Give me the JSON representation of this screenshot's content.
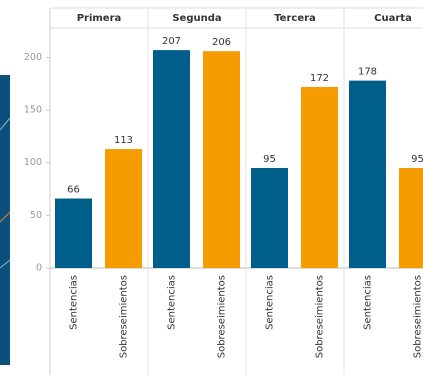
{
  "chart_data": {
    "type": "bar",
    "categories": [
      "Primera",
      "Segunda",
      "Tercera",
      "Cuarta"
    ],
    "series": [
      {
        "name": "Sentencias",
        "color": "#005f8a",
        "values": [
          66,
          207,
          95,
          178
        ]
      },
      {
        "name": "Sobreseimientos",
        "color": "#f59c00",
        "values": [
          113,
          206,
          172,
          95
        ]
      }
    ],
    "ylim": [
      0,
      228
    ],
    "yticks": [
      0,
      50,
      100,
      150,
      200
    ],
    "grid": false
  }
}
